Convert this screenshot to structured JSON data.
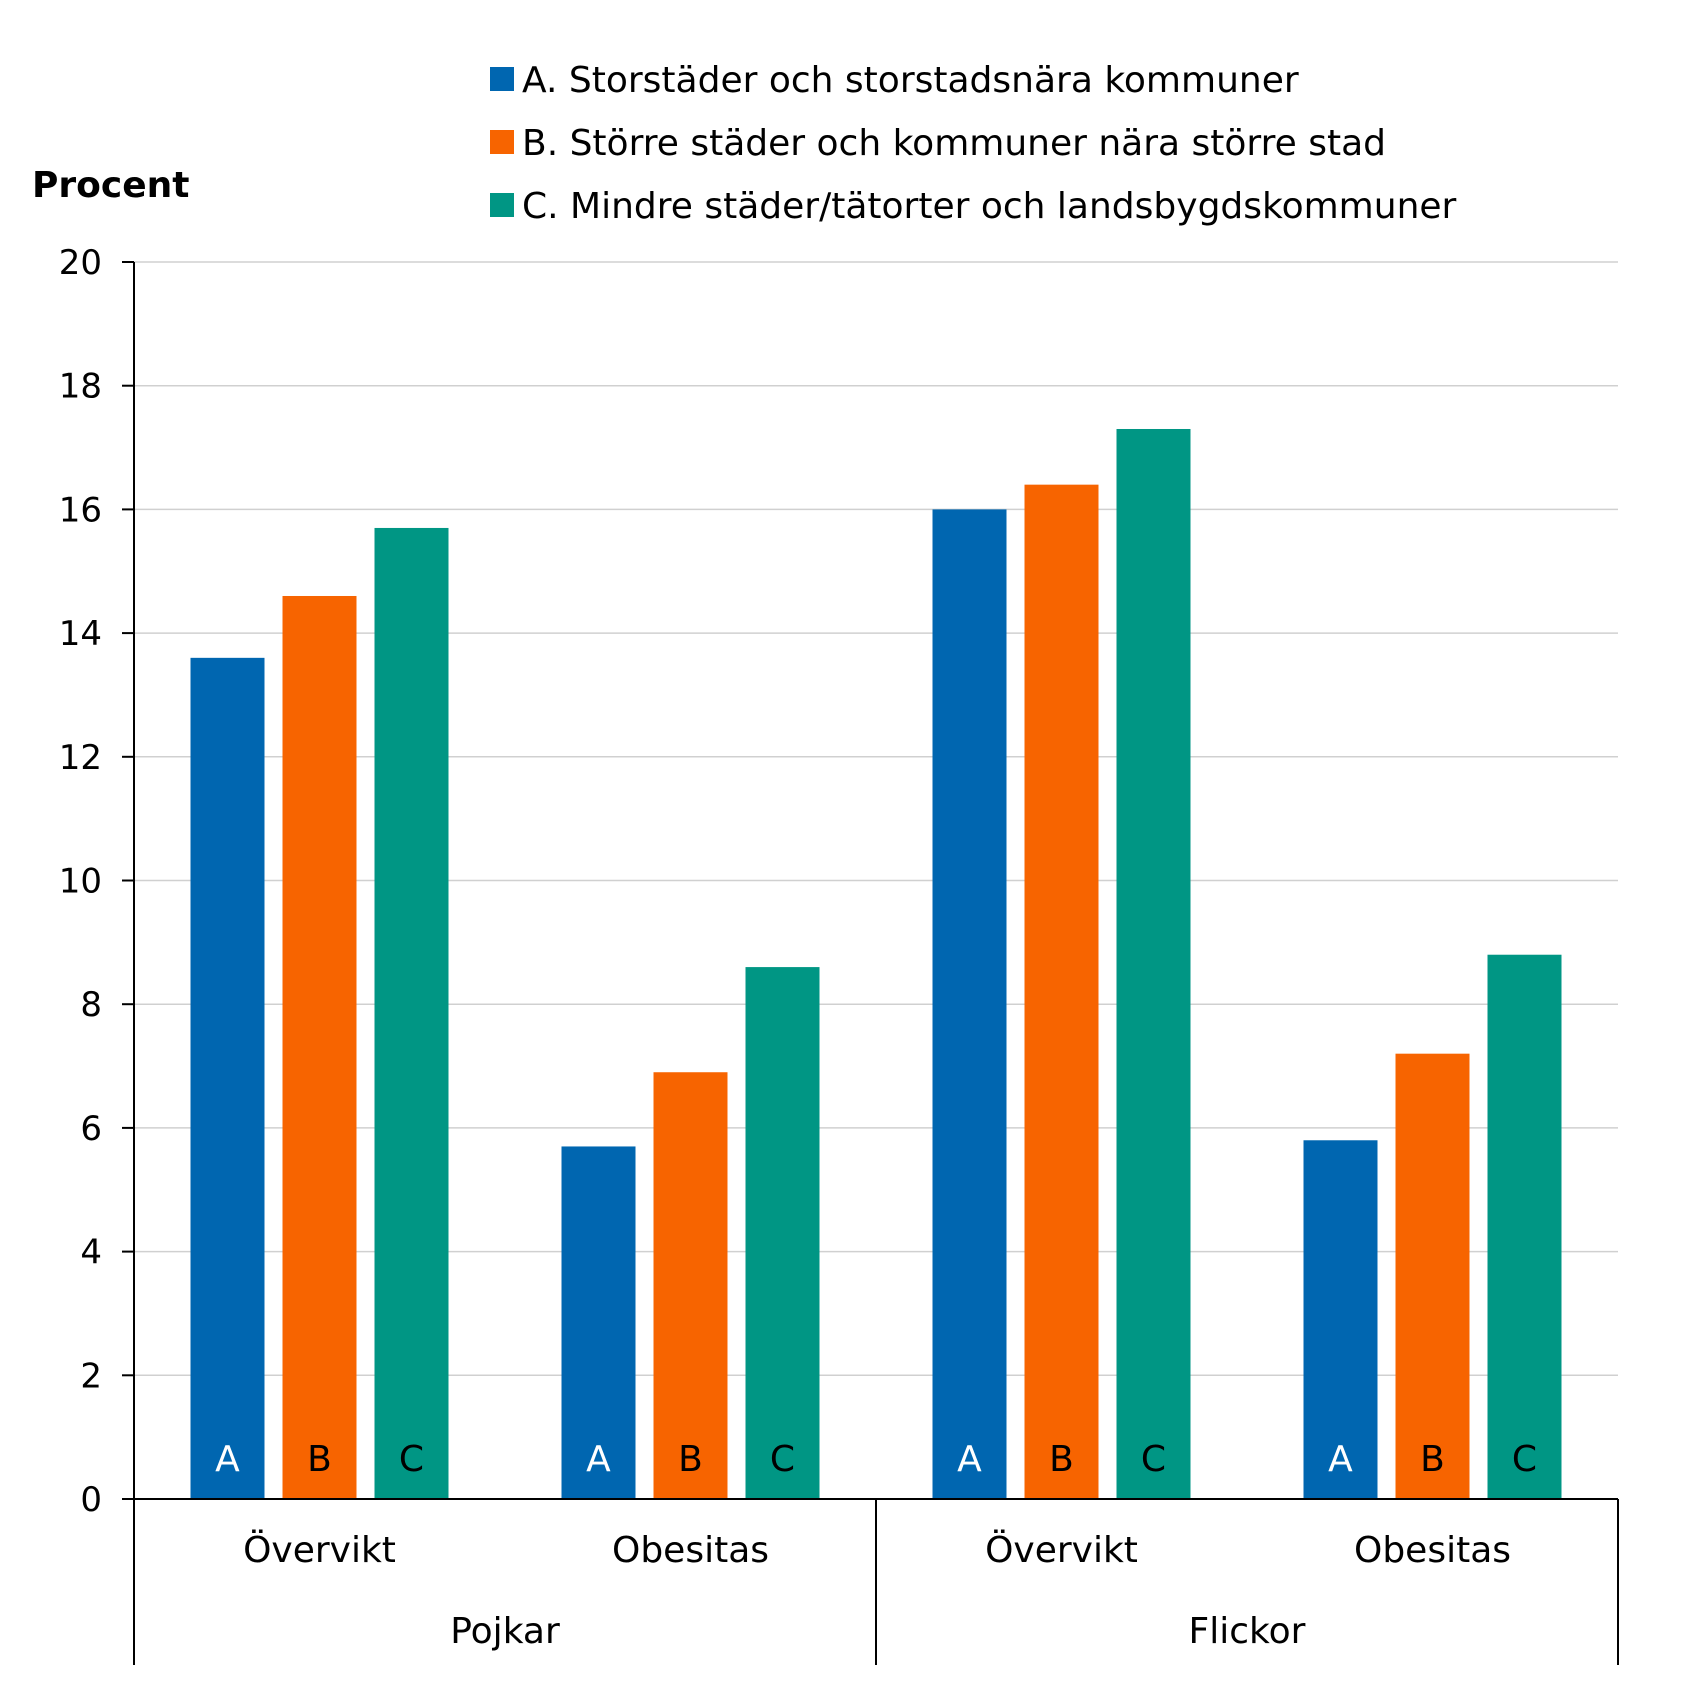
{
  "chart_data": {
    "type": "bar",
    "ylabel": "Procent",
    "ylim": [
      0,
      20
    ],
    "yticks": [
      "0",
      "2",
      "4",
      "6",
      "8",
      "10",
      "12",
      "14",
      "16",
      "18",
      "20"
    ],
    "grid": true,
    "legend_position": "top",
    "groups": [
      {
        "label": "Pojkar",
        "categories": [
          "Övervikt",
          "Obesitas"
        ]
      },
      {
        "label": "Flickor",
        "categories": [
          "Övervikt",
          "Obesitas"
        ]
      }
    ],
    "categories": [
      "Övervikt",
      "Obesitas",
      "Övervikt",
      "Obesitas"
    ],
    "series": [
      {
        "name": "A. Storstäder och storstadsnära kommuner",
        "letter": "A",
        "color": "#0066b0",
        "letter_color": "#ffffff",
        "values": [
          13.6,
          5.7,
          16.0,
          5.8
        ]
      },
      {
        "name": "B. Större städer och kommuner nära större stad",
        "letter": "B",
        "color": "#f76400",
        "letter_color": "#000000",
        "values": [
          14.6,
          6.9,
          16.4,
          7.2
        ]
      },
      {
        "name": "C. Mindre städer/tätorter och landsbygdskommuner",
        "letter": "C",
        "color": "#009684",
        "letter_color": "#000000",
        "values": [
          15.7,
          8.6,
          17.3,
          8.8
        ]
      }
    ]
  }
}
